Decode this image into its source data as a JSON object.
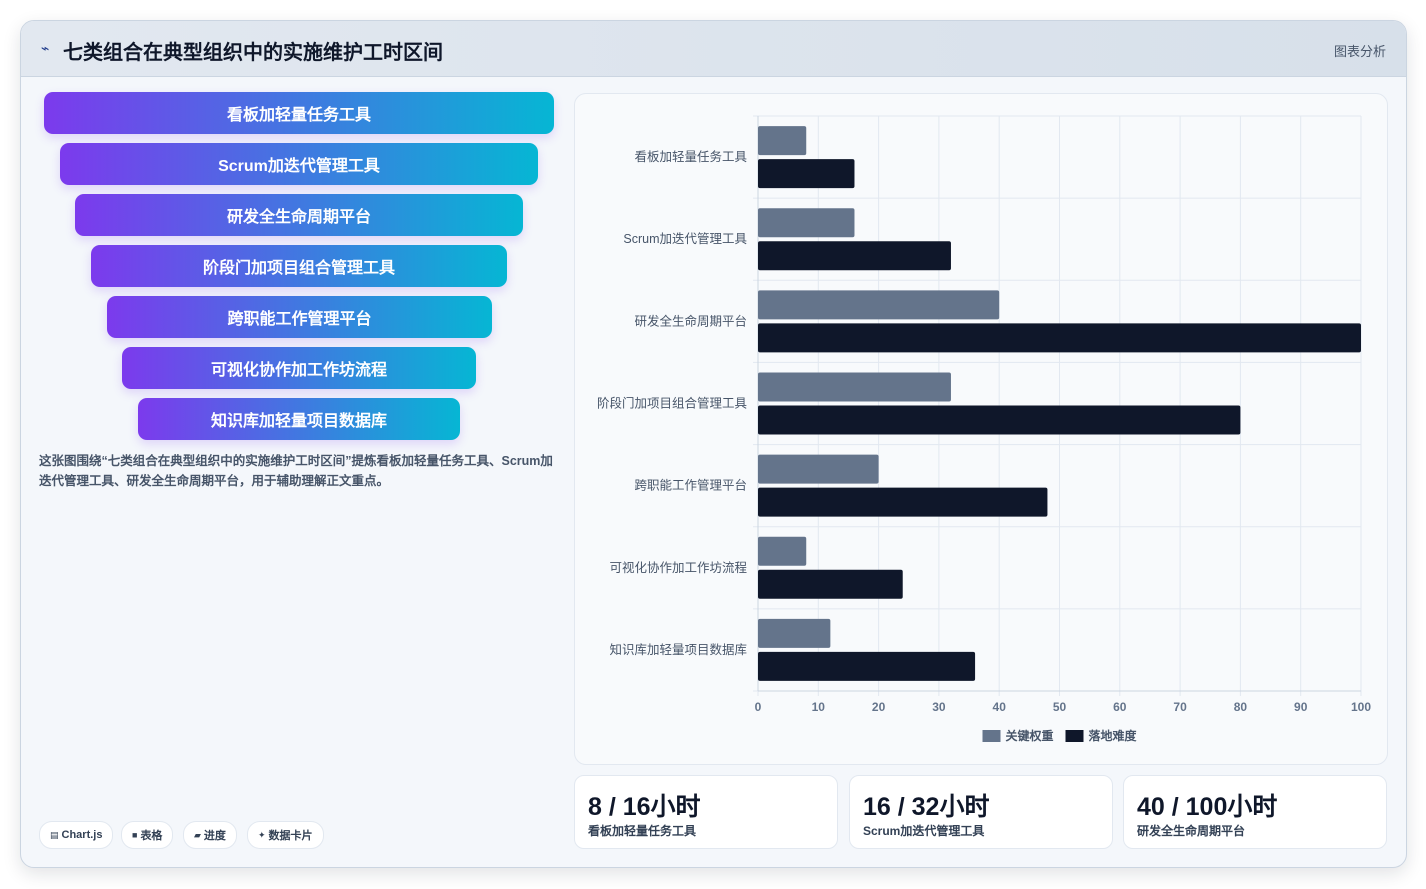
{
  "header": {
    "logo_icon": "line-chart-icon",
    "title": "七类组合在典型组织中的实施维护工时区间",
    "tag": "图表分析"
  },
  "funnel": [
    "看板加轻量任务工具",
    "Scrum加迭代管理工具",
    "研发全生命周期平台",
    "阶段门加项目组合管理工具",
    "跨职能工作管理平台",
    "可视化协作加工作坊流程",
    "知识库加轻量项目数据库"
  ],
  "description": "这张图围绕“七类组合在典型组织中的实施维护工时区间”提炼看板加轻量任务工具、Scrum加迭代管理工具、研发全生命周期平台，用于辅助理解正文重点。",
  "footer_pills": [
    {
      "icon": "chart-icon",
      "glyph": "▤",
      "label": "Chart.js"
    },
    {
      "icon": "table-icon",
      "glyph": "■",
      "label": "表格"
    },
    {
      "icon": "progress-icon",
      "glyph": "▰",
      "label": "进度"
    },
    {
      "icon": "sparkle-icon",
      "glyph": "✦",
      "label": "数据卡片"
    }
  ],
  "stats": [
    {
      "value": "8 / 16小时",
      "label": "看板加轻量任务工具"
    },
    {
      "value": "16 / 32小时",
      "label": "Scrum加迭代管理工具"
    },
    {
      "value": "40 / 100小时",
      "label": "研发全生命周期平台"
    }
  ],
  "chart_data": {
    "type": "bar",
    "orientation": "horizontal",
    "categories": [
      "看板加轻量任务工具",
      "Scrum加迭代管理工具",
      "研发全生命周期平台",
      "阶段门加项目组合管理工具",
      "跨职能工作管理平台",
      "可视化协作加工作坊流程",
      "知识库加轻量项目数据库"
    ],
    "series": [
      {
        "name": "关键权重",
        "color": "#64748b",
        "values": [
          8,
          16,
          40,
          32,
          20,
          8,
          12
        ]
      },
      {
        "name": "落地难度",
        "color": "#0f172a",
        "values": [
          16,
          32,
          100,
          80,
          48,
          24,
          36
        ]
      }
    ],
    "xlim": [
      0,
      100
    ],
    "xticks": [
      0,
      10,
      20,
      30,
      40,
      50,
      60,
      70,
      80,
      90,
      100
    ],
    "grid": true,
    "legend": "bottom"
  }
}
